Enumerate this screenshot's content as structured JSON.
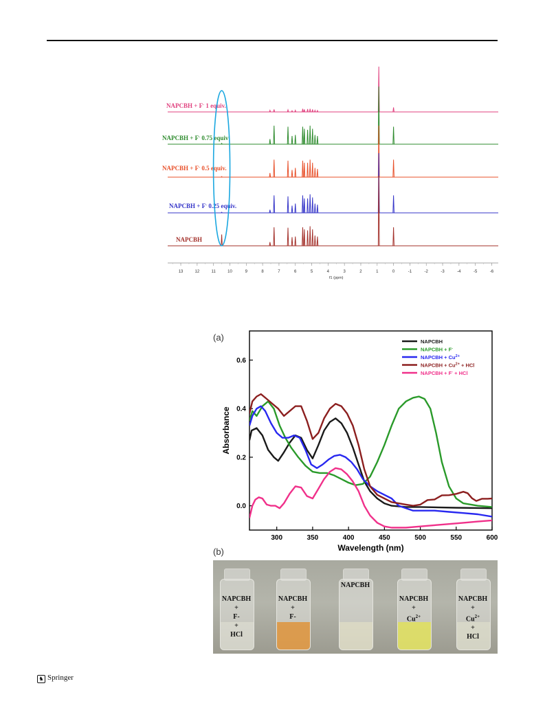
{
  "footer": {
    "publisher": "Springer",
    "logo_icon": "springer-horse-icon"
  },
  "nmr": {
    "spectra": [
      {
        "label": "NAPCBH + F",
        "sup": "-",
        "suffix": " 1 equiv.",
        "color": "#e0407e"
      },
      {
        "label": "NAPCBH + F",
        "sup": "-",
        "suffix": " 0.75 equiv",
        "color": "#2e8b2e"
      },
      {
        "label": "NAPCBH + F",
        "sup": "-",
        "suffix": " 0.5 equiv.",
        "color": "#e8502a"
      },
      {
        "label": "NAPCBH + F",
        "sup": "-",
        "suffix": " 0.25 equiv.",
        "color": "#3434c8"
      },
      {
        "label": "NAPCBH",
        "sup": "",
        "suffix": "",
        "color": "#a3302a"
      }
    ],
    "chart_data": {
      "type": "line",
      "xlabel": "f1 (ppm)",
      "xticks": [
        13,
        12,
        11,
        10,
        9,
        8,
        7,
        6,
        5,
        4,
        3,
        2,
        1,
        0,
        -1,
        -2,
        -3,
        -4,
        -5,
        -6
      ],
      "xlim": [
        13.8,
        -6.4
      ],
      "peaks_ppm": [
        {
          "ppm": 10.5,
          "h": [
            0.0,
            0.04,
            0.03,
            0.03,
            0.55
          ]
        },
        {
          "ppm": 7.55,
          "h": [
            0.08,
            0.25,
            0.2,
            0.15,
            0.18
          ]
        },
        {
          "ppm": 7.3,
          "h": [
            0.12,
            0.9,
            0.85,
            0.85,
            0.9
          ]
        },
        {
          "ppm": 6.45,
          "h": [
            0.1,
            0.85,
            0.8,
            0.8,
            0.88
          ]
        },
        {
          "ppm": 6.2,
          "h": [
            0.06,
            0.4,
            0.35,
            0.35,
            0.42
          ]
        },
        {
          "ppm": 6.0,
          "h": [
            0.08,
            0.45,
            0.45,
            0.45,
            0.45
          ]
        },
        {
          "ppm": 5.55,
          "h": [
            0.15,
            0.85,
            0.8,
            0.85,
            0.9
          ]
        },
        {
          "ppm": 5.45,
          "h": [
            0.12,
            0.75,
            0.7,
            0.7,
            0.8
          ]
        },
        {
          "ppm": 5.25,
          "h": [
            0.14,
            0.7,
            0.7,
            0.7,
            0.75
          ]
        },
        {
          "ppm": 5.1,
          "h": [
            0.15,
            0.9,
            0.85,
            0.9,
            0.95
          ]
        },
        {
          "ppm": 4.95,
          "h": [
            0.12,
            0.75,
            0.7,
            0.75,
            0.8
          ]
        },
        {
          "ppm": 4.8,
          "h": [
            0.08,
            0.45,
            0.45,
            0.45,
            0.5
          ]
        },
        {
          "ppm": 4.65,
          "h": [
            0.07,
            0.4,
            0.4,
            0.4,
            0.45
          ]
        },
        {
          "ppm": 0.9,
          "h": [
            2.2,
            2.8,
            2.5,
            2.9,
            3.4
          ]
        },
        {
          "ppm": 0.0,
          "h": [
            0.22,
            0.85,
            0.85,
            0.85,
            0.9
          ]
        }
      ],
      "annotation": "blue ellipse highlighting 10.5 ppm region"
    }
  },
  "uv": {
    "panel_label": "(a)",
    "photo_label": "(b)",
    "chart_data": {
      "type": "line",
      "xlabel": "Wavelength (nm)",
      "ylabel": "Absorbance",
      "xlim": [
        262,
        600
      ],
      "ylim": [
        -0.1,
        0.72
      ],
      "xticks": [
        300,
        350,
        400,
        450,
        500,
        550,
        600
      ],
      "yticks": [
        0.0,
        0.2,
        0.4,
        0.6
      ],
      "legend_position": "top-right",
      "series": [
        {
          "name": "NAPCBH",
          "sup": "",
          "suffix": "",
          "color": "#1a1a1a",
          "points": [
            [
              262,
              0.27
            ],
            [
              265,
              0.31
            ],
            [
              272,
              0.32
            ],
            [
              280,
              0.29
            ],
            [
              288,
              0.23
            ],
            [
              296,
              0.2
            ],
            [
              302,
              0.185
            ],
            [
              310,
              0.22
            ],
            [
              318,
              0.26
            ],
            [
              326,
              0.29
            ],
            [
              334,
              0.28
            ],
            [
              342,
              0.23
            ],
            [
              350,
              0.195
            ],
            [
              358,
              0.25
            ],
            [
              366,
              0.31
            ],
            [
              374,
              0.345
            ],
            [
              382,
              0.36
            ],
            [
              390,
              0.34
            ],
            [
              398,
              0.3
            ],
            [
              406,
              0.24
            ],
            [
              414,
              0.17
            ],
            [
              422,
              0.1
            ],
            [
              430,
              0.06
            ],
            [
              440,
              0.03
            ],
            [
              450,
              0.01
            ],
            [
              460,
              0.0
            ],
            [
              480,
              -0.005
            ],
            [
              500,
              -0.005
            ],
            [
              550,
              -0.008
            ],
            [
              600,
              -0.01
            ]
          ]
        },
        {
          "name": "NAPCBH + F",
          "sup": "-",
          "suffix": "",
          "color": "#2a9a2a",
          "points": [
            [
              262,
              0.35
            ],
            [
              266,
              0.39
            ],
            [
              272,
              0.37
            ],
            [
              280,
              0.41
            ],
            [
              288,
              0.43
            ],
            [
              296,
              0.4
            ],
            [
              304,
              0.33
            ],
            [
              312,
              0.28
            ],
            [
              320,
              0.24
            ],
            [
              330,
              0.2
            ],
            [
              340,
              0.165
            ],
            [
              350,
              0.14
            ],
            [
              360,
              0.135
            ],
            [
              370,
              0.135
            ],
            [
              380,
              0.125
            ],
            [
              390,
              0.11
            ],
            [
              400,
              0.095
            ],
            [
              410,
              0.085
            ],
            [
              420,
              0.09
            ],
            [
              430,
              0.12
            ],
            [
              440,
              0.18
            ],
            [
              450,
              0.25
            ],
            [
              460,
              0.33
            ],
            [
              470,
              0.4
            ],
            [
              480,
              0.43
            ],
            [
              490,
              0.445
            ],
            [
              498,
              0.45
            ],
            [
              506,
              0.44
            ],
            [
              514,
              0.4
            ],
            [
              522,
              0.3
            ],
            [
              530,
              0.18
            ],
            [
              540,
              0.08
            ],
            [
              550,
              0.03
            ],
            [
              560,
              0.01
            ],
            [
              580,
              0.0
            ],
            [
              600,
              -0.005
            ]
          ]
        },
        {
          "name": "NAPCBH + Cu",
          "sup": "2+",
          "suffix": "",
          "color": "#2828f0",
          "points": [
            [
              262,
              0.33
            ],
            [
              266,
              0.37
            ],
            [
              272,
              0.4
            ],
            [
              278,
              0.41
            ],
            [
              284,
              0.39
            ],
            [
              292,
              0.34
            ],
            [
              300,
              0.3
            ],
            [
              308,
              0.28
            ],
            [
              316,
              0.28
            ],
            [
              324,
              0.29
            ],
            [
              332,
              0.28
            ],
            [
              340,
              0.23
            ],
            [
              348,
              0.17
            ],
            [
              356,
              0.155
            ],
            [
              364,
              0.17
            ],
            [
              372,
              0.19
            ],
            [
              380,
              0.205
            ],
            [
              388,
              0.21
            ],
            [
              396,
              0.2
            ],
            [
              404,
              0.18
            ],
            [
              412,
              0.15
            ],
            [
              420,
              0.11
            ],
            [
              430,
              0.08
            ],
            [
              440,
              0.06
            ],
            [
              450,
              0.045
            ],
            [
              460,
              0.03
            ],
            [
              470,
              0.0
            ],
            [
              480,
              -0.01
            ],
            [
              490,
              -0.02
            ],
            [
              500,
              -0.02
            ],
            [
              520,
              -0.02
            ],
            [
              540,
              -0.025
            ],
            [
              560,
              -0.03
            ],
            [
              580,
              -0.035
            ],
            [
              600,
              -0.045
            ]
          ]
        },
        {
          "name": "NAPCBH + Cu",
          "sup": "2+",
          "suffix": " + HCl",
          "color": "#8c1f1f",
          "points": [
            [
              262,
              0.38
            ],
            [
              266,
              0.43
            ],
            [
              272,
              0.45
            ],
            [
              278,
              0.46
            ],
            [
              286,
              0.44
            ],
            [
              294,
              0.42
            ],
            [
              302,
              0.4
            ],
            [
              310,
              0.37
            ],
            [
              318,
              0.39
            ],
            [
              326,
              0.41
            ],
            [
              334,
              0.41
            ],
            [
              342,
              0.35
            ],
            [
              350,
              0.275
            ],
            [
              358,
              0.3
            ],
            [
              366,
              0.36
            ],
            [
              374,
              0.4
            ],
            [
              382,
              0.42
            ],
            [
              390,
              0.41
            ],
            [
              398,
              0.38
            ],
            [
              406,
              0.33
            ],
            [
              414,
              0.25
            ],
            [
              422,
              0.15
            ],
            [
              430,
              0.08
            ],
            [
              440,
              0.045
            ],
            [
              450,
              0.03
            ],
            [
              460,
              0.015
            ],
            [
              470,
              0.01
            ],
            [
              480,
              0.005
            ],
            [
              490,
              0.0
            ],
            [
              500,
              0.005
            ],
            [
              510,
              0.02
            ],
            [
              520,
              0.03
            ],
            [
              530,
              0.04
            ],
            [
              540,
              0.045
            ],
            [
              550,
              0.05
            ],
            [
              560,
              0.055
            ],
            [
              566,
              0.05
            ],
            [
              572,
              0.03
            ],
            [
              578,
              0.02
            ],
            [
              586,
              0.025
            ],
            [
              594,
              0.03
            ],
            [
              600,
              0.03
            ]
          ]
        },
        {
          "name": "NAPCBH + F",
          "sup": "-",
          "suffix": " + HCl",
          "color": "#f0308a",
          "points": [
            [
              262,
              -0.05
            ],
            [
              266,
              0.0
            ],
            [
              270,
              0.025
            ],
            [
              275,
              0.035
            ],
            [
              280,
              0.03
            ],
            [
              286,
              0.005
            ],
            [
              292,
              0.0
            ],
            [
              298,
              0.0
            ],
            [
              304,
              -0.01
            ],
            [
              310,
              0.01
            ],
            [
              318,
              0.05
            ],
            [
              326,
              0.08
            ],
            [
              334,
              0.075
            ],
            [
              342,
              0.04
            ],
            [
              350,
              0.03
            ],
            [
              358,
              0.07
            ],
            [
              366,
              0.11
            ],
            [
              374,
              0.14
            ],
            [
              382,
              0.155
            ],
            [
              390,
              0.15
            ],
            [
              398,
              0.13
            ],
            [
              406,
              0.1
            ],
            [
              414,
              0.06
            ],
            [
              422,
              0.0
            ],
            [
              430,
              -0.04
            ],
            [
              440,
              -0.07
            ],
            [
              450,
              -0.085
            ],
            [
              460,
              -0.09
            ],
            [
              480,
              -0.09
            ],
            [
              500,
              -0.085
            ],
            [
              520,
              -0.08
            ],
            [
              540,
              -0.075
            ],
            [
              560,
              -0.07
            ],
            [
              580,
              -0.065
            ],
            [
              600,
              -0.06
            ]
          ]
        }
      ]
    }
  },
  "vials": [
    {
      "lines": [
        "NAPCBH",
        "+",
        "F-",
        "+",
        "HCl"
      ],
      "liquid": "rgba(240,240,225,0.35)"
    },
    {
      "lines": [
        "NAPCBH",
        "+",
        "F-"
      ],
      "liquid": "rgba(225,140,40,0.75)"
    },
    {
      "lines": [
        "NAPCBH"
      ],
      "liquid": "rgba(240,236,200,0.45)"
    },
    {
      "lines": [
        "NAPCBH",
        "+",
        "Cu2+"
      ],
      "liquid": "rgba(230,230,70,0.7)"
    },
    {
      "lines": [
        "NAPCBH",
        "+",
        "Cu2+",
        "+",
        "HCl"
      ],
      "liquid": "rgba(238,238,210,0.4)"
    }
  ]
}
